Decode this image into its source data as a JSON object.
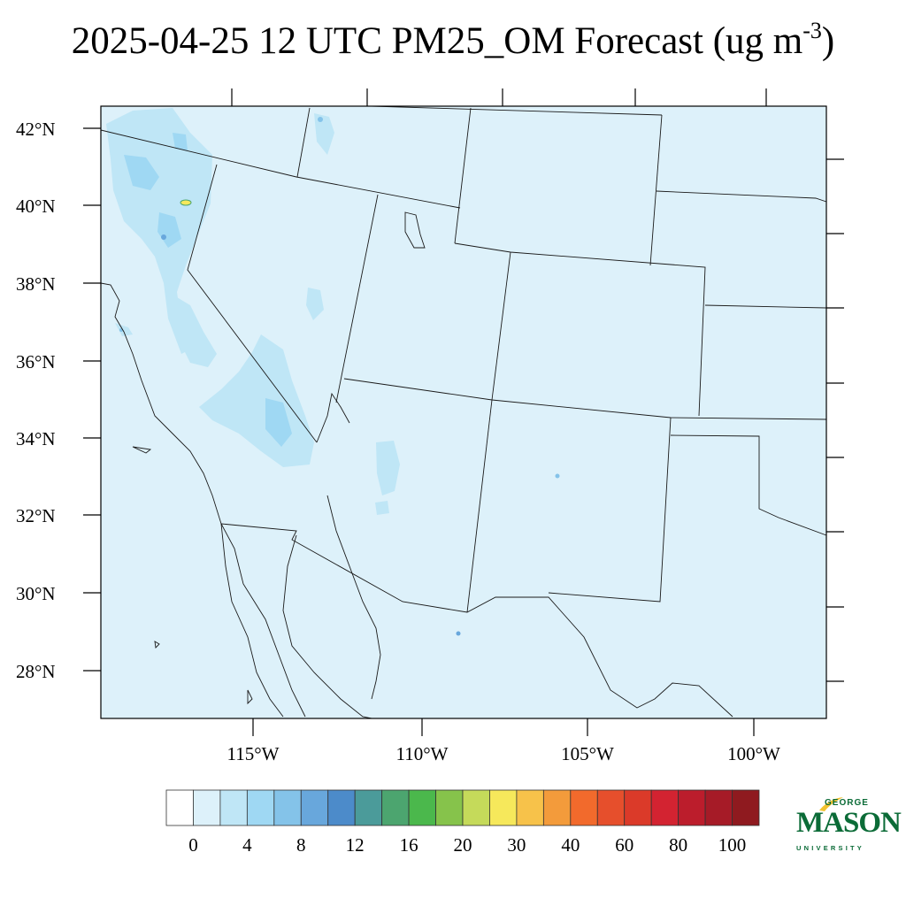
{
  "title": {
    "text": "2025-04-25 12 UTC PM25_OM Forecast (ug m",
    "unit_exponent": "-3",
    "close": ")"
  },
  "map": {
    "background_color": "#ddf1fa",
    "lat_labels": [
      "42°N",
      "40°N",
      "38°N",
      "36°N",
      "34°N",
      "32°N",
      "30°N",
      "28°N"
    ],
    "lon_labels": [
      "115°W",
      "110°W",
      "105°W",
      "100°W"
    ]
  },
  "colorbar": {
    "colors": [
      "#ffffff",
      "#ddf1fa",
      "#bfe6f6",
      "#9fd8f3",
      "#84c3e9",
      "#68a7dc",
      "#4c8bca",
      "#4b9b9a",
      "#4ca56f",
      "#4bb84c",
      "#86c34b",
      "#c5da5a",
      "#f6e85b",
      "#f7c24a",
      "#f39b3b",
      "#f26a2c",
      "#e64f2c",
      "#db3a29",
      "#d32331",
      "#bc1d2c",
      "#a61b27",
      "#8f1a1f"
    ],
    "labels": [
      "0",
      "4",
      "8",
      "12",
      "16",
      "20",
      "30",
      "40",
      "60",
      "80",
      "100"
    ]
  },
  "logo": {
    "line1": "GEORGE",
    "line2": "MASON",
    "line3": "UNIVERSITY",
    "color": "#0b6b37",
    "accent": "#f2c230"
  }
}
